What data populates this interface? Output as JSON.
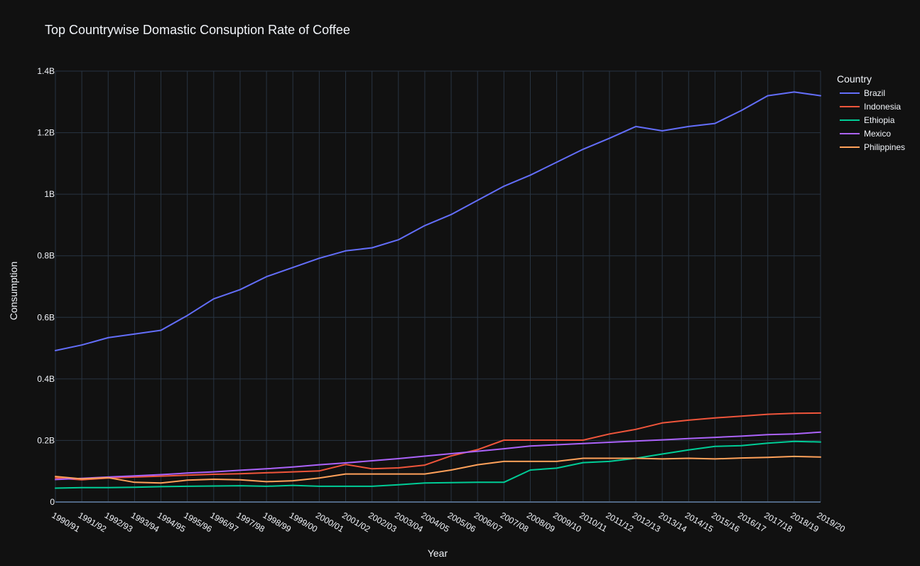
{
  "chart_data": {
    "type": "line",
    "title": "Top Countrywise Domastic Consuption Rate of Coffee",
    "xlabel": "Year",
    "ylabel": "Consumption",
    "ylim": [
      0,
      1400000000
    ],
    "yticks": [
      0,
      200000000,
      400000000,
      600000000,
      800000000,
      1000000000,
      1200000000,
      1400000000
    ],
    "ytick_labels": [
      "0",
      "0.2B",
      "0.4B",
      "0.6B",
      "0.8B",
      "1B",
      "1.2B",
      "1.4B"
    ],
    "grid": true,
    "legend_title": "Country",
    "legend_position": "top-right",
    "x": [
      "1990/91",
      "1991/92",
      "1992/93",
      "1993/94",
      "1994/95",
      "1995/96",
      "1996/97",
      "1997/98",
      "1998/99",
      "1999/00",
      "2000/01",
      "2001/02",
      "2002/03",
      "2003/04",
      "2004/05",
      "2005/06",
      "2006/07",
      "2007/08",
      "2008/09",
      "2009/10",
      "2010/11",
      "2011/12",
      "2012/13",
      "2013/14",
      "2014/15",
      "2015/16",
      "2016/17",
      "2017/18",
      "2018/19",
      "2019/20"
    ],
    "series": [
      {
        "name": "Brazil",
        "color": "#636efa",
        "values": [
          492000000,
          510000000,
          534000000,
          546000000,
          558000000,
          606000000,
          660000000,
          690000000,
          732000000,
          762000000,
          792000000,
          816000000,
          826000000,
          852000000,
          898000000,
          934000000,
          980000000,
          1026000000,
          1062000000,
          1104000000,
          1146000000,
          1182000000,
          1220000000,
          1206000000,
          1220000000,
          1230000000,
          1272000000,
          1320000000,
          1332000000,
          1320000000
        ]
      },
      {
        "name": "Indonesia",
        "color": "#EF553B",
        "values": [
          78000000,
          72000000,
          78000000,
          81000000,
          84000000,
          87000000,
          90000000,
          92000000,
          95000000,
          98000000,
          101000000,
          122000000,
          108000000,
          111000000,
          120000000,
          150000000,
          170000000,
          201000000,
          201000000,
          201000000,
          201000000,
          221000000,
          236000000,
          257000000,
          266000000,
          273000000,
          279000000,
          285000000,
          288000000,
          289000000
        ]
      },
      {
        "name": "Ethiopia",
        "color": "#00cc96",
        "values": [
          45000000,
          47000000,
          47000000,
          48000000,
          50000000,
          51000000,
          52000000,
          53000000,
          51000000,
          54000000,
          51000000,
          51000000,
          51000000,
          56000000,
          62000000,
          63000000,
          64000000,
          64000000,
          104000000,
          110000000,
          128000000,
          132000000,
          142000000,
          156000000,
          169000000,
          181000000,
          183000000,
          191000000,
          197000000,
          195000000
        ]
      },
      {
        "name": "Mexico",
        "color": "#ab63fa",
        "values": [
          73000000,
          77000000,
          81000000,
          85000000,
          89000000,
          94000000,
          98000000,
          103000000,
          108000000,
          114000000,
          121000000,
          127000000,
          134000000,
          141000000,
          149000000,
          157000000,
          165000000,
          173000000,
          182000000,
          186000000,
          190000000,
          194000000,
          198000000,
          202000000,
          206000000,
          210000000,
          214000000,
          219000000,
          221000000,
          227000000
        ]
      },
      {
        "name": "Philippines",
        "color": "#FFA15A",
        "values": [
          83000000,
          75000000,
          79000000,
          64000000,
          62000000,
          71000000,
          74000000,
          72000000,
          66000000,
          69000000,
          78000000,
          91000000,
          91000000,
          91000000,
          91000000,
          104000000,
          121000000,
          132000000,
          132000000,
          132000000,
          142000000,
          142000000,
          142000000,
          140000000,
          142000000,
          140000000,
          143000000,
          145000000,
          148000000,
          146000000
        ]
      }
    ]
  }
}
